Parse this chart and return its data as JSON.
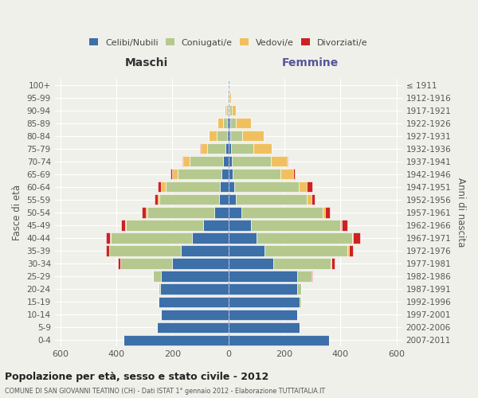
{
  "age_groups": [
    "100+",
    "95-99",
    "90-94",
    "85-89",
    "80-84",
    "75-79",
    "70-74",
    "65-69",
    "60-64",
    "55-59",
    "50-54",
    "45-49",
    "40-44",
    "35-39",
    "30-34",
    "25-29",
    "20-24",
    "15-19",
    "10-14",
    "5-9",
    "0-4"
  ],
  "birth_years": [
    "≤ 1911",
    "1912-1916",
    "1917-1921",
    "1922-1926",
    "1927-1931",
    "1932-1936",
    "1937-1941",
    "1942-1946",
    "1947-1951",
    "1952-1956",
    "1957-1961",
    "1962-1966",
    "1967-1971",
    "1972-1976",
    "1977-1981",
    "1982-1986",
    "1987-1991",
    "1992-1996",
    "1997-2001",
    "2002-2006",
    "2007-2011"
  ],
  "colors": {
    "celibi": "#3d6fa8",
    "coniugati": "#b5c98e",
    "vedovi": "#f0c060",
    "divorziati": "#cc2222"
  },
  "maschi": {
    "celibi": [
      2,
      2,
      3,
      5,
      6,
      10,
      20,
      25,
      30,
      32,
      50,
      90,
      130,
      170,
      200,
      240,
      245,
      250,
      240,
      255,
      375
    ],
    "coniugati": [
      0,
      2,
      5,
      15,
      35,
      65,
      120,
      155,
      195,
      215,
      240,
      275,
      290,
      255,
      185,
      30,
      5,
      2,
      0,
      0,
      0
    ],
    "vedovi": [
      0,
      2,
      5,
      20,
      30,
      25,
      20,
      20,
      15,
      5,
      5,
      5,
      3,
      2,
      2,
      0,
      0,
      0,
      0,
      0,
      0
    ],
    "divorziati": [
      0,
      0,
      0,
      0,
      0,
      2,
      5,
      8,
      12,
      12,
      14,
      14,
      15,
      10,
      8,
      0,
      0,
      0,
      0,
      0,
      0
    ]
  },
  "femmine": {
    "celibi": [
      2,
      2,
      3,
      5,
      5,
      8,
      12,
      15,
      20,
      25,
      45,
      80,
      100,
      130,
      160,
      245,
      245,
      255,
      245,
      255,
      360
    ],
    "coniugati": [
      0,
      2,
      8,
      20,
      45,
      80,
      140,
      170,
      230,
      255,
      290,
      320,
      340,
      295,
      205,
      50,
      15,
      5,
      0,
      0,
      0
    ],
    "vedovi": [
      0,
      5,
      15,
      55,
      75,
      65,
      55,
      45,
      30,
      15,
      10,
      5,
      5,
      5,
      2,
      0,
      0,
      0,
      0,
      0,
      0
    ],
    "divorziati": [
      0,
      0,
      0,
      0,
      2,
      2,
      5,
      8,
      18,
      12,
      18,
      20,
      25,
      15,
      12,
      5,
      0,
      0,
      0,
      0,
      0
    ]
  },
  "xlim": 620,
  "title_main": "Popolazione per età, sesso e stato civile - 2012",
  "title_sub": "COMUNE DI SAN GIOVANNI TEATINO (CH) - Dati ISTAT 1° gennaio 2012 - Elaborazione TUTTAITALIA.IT",
  "xlabel_left": "Maschi",
  "xlabel_right": "Femmine",
  "ylabel_left": "Fasce di età",
  "ylabel_right": "Anni di nascita",
  "legend_labels": [
    "Celibi/Nubili",
    "Coniugati/e",
    "Vedovi/e",
    "Divorziati/e"
  ],
  "bg_color": "#f0f0eb"
}
